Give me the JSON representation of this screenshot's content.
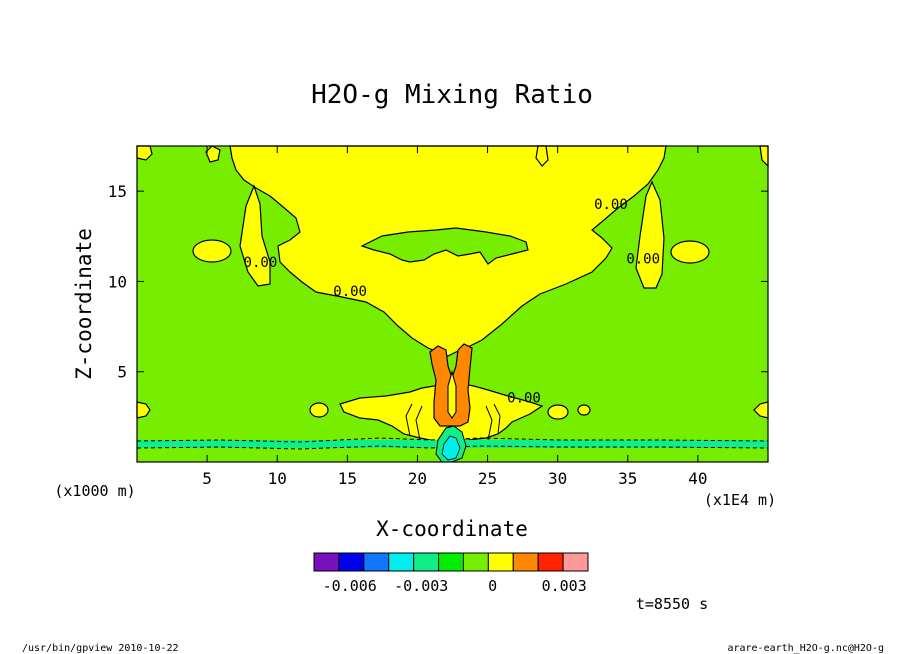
{
  "chart_data": {
    "type": "contour",
    "title": "H2O-g Mixing Ratio",
    "xlabel": "X-coordinate",
    "ylabel": "Z-coordinate",
    "x_unit_label": "(x1E4 m)",
    "y_unit_label": "(x1000 m)",
    "xlim": [
      0,
      45
    ],
    "ylim": [
      0,
      17.5
    ],
    "x_ticks": [
      5,
      10,
      15,
      20,
      25,
      30,
      35,
      40
    ],
    "y_ticks": [
      5,
      10,
      15
    ],
    "contour_labels": [
      {
        "text": "0.00",
        "x": 15.2,
        "y": 9.2
      },
      {
        "text": "0.00",
        "x": 8.8,
        "y": 10.8
      },
      {
        "text": "0.00",
        "x": 33.8,
        "y": 14.0
      },
      {
        "text": "0.00",
        "x": 36.1,
        "y": 11.0
      },
      {
        "text": "0.00",
        "x": 27.6,
        "y": 3.3
      }
    ],
    "colorbar": {
      "colors": [
        "#7711bb",
        "#0000ee",
        "#1177ff",
        "#00eeee",
        "#11ee88",
        "#00ee00",
        "#77ee00",
        "#ffff00",
        "#ff8800",
        "#ff2200",
        "#ff9999"
      ],
      "tick_labels": [
        "-0.006",
        "-0.003",
        "0",
        "0.003"
      ],
      "tick_values": [
        -0.006,
        -0.003,
        0,
        0.003
      ],
      "range": [
        -0.0075,
        0.004
      ]
    }
  },
  "annotations": {
    "time": "t=8550 s",
    "program": "/usr/bin/gpview  2010-10-22",
    "source": "arare-earth_H2O-g.nc@H2O-g"
  }
}
